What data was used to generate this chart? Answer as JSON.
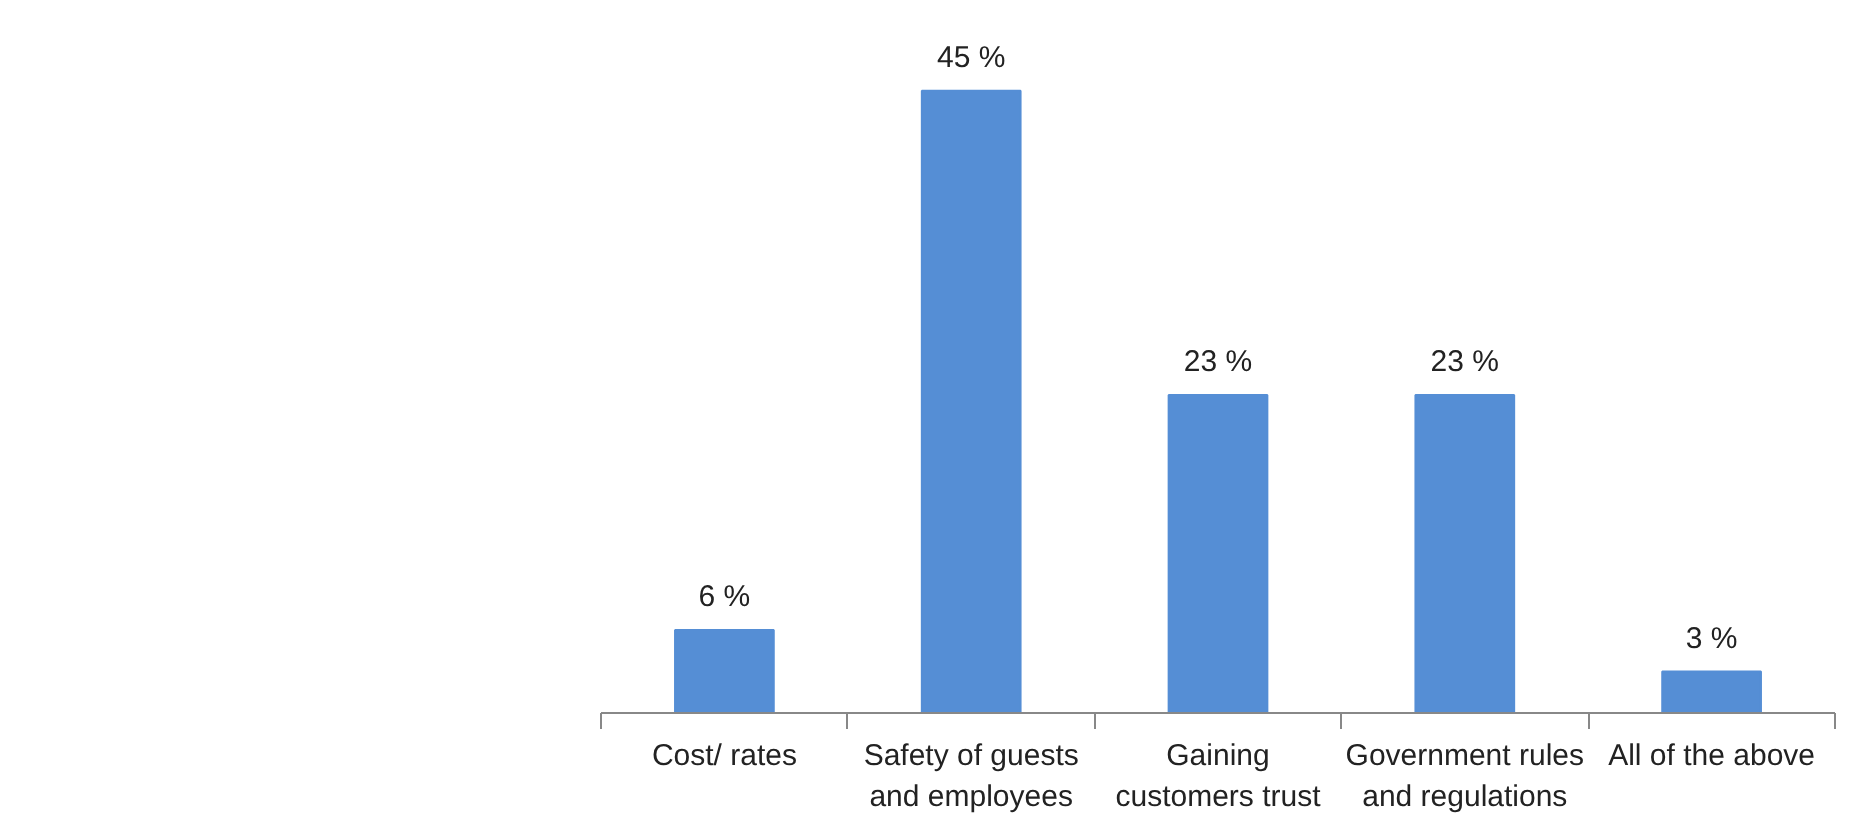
{
  "chart_data": {
    "type": "bar",
    "categories": [
      "Cost/ rates",
      "Safety of guests and employees",
      "Gaining customers trust",
      "Government rules and regulations",
      "All of the above"
    ],
    "values": [
      6,
      45,
      23,
      23,
      3
    ],
    "color": "#558ed5",
    "value_labels": [
      "6 %",
      "45 %",
      "23 %",
      "23 %",
      "3 %"
    ],
    "grid": false
  }
}
